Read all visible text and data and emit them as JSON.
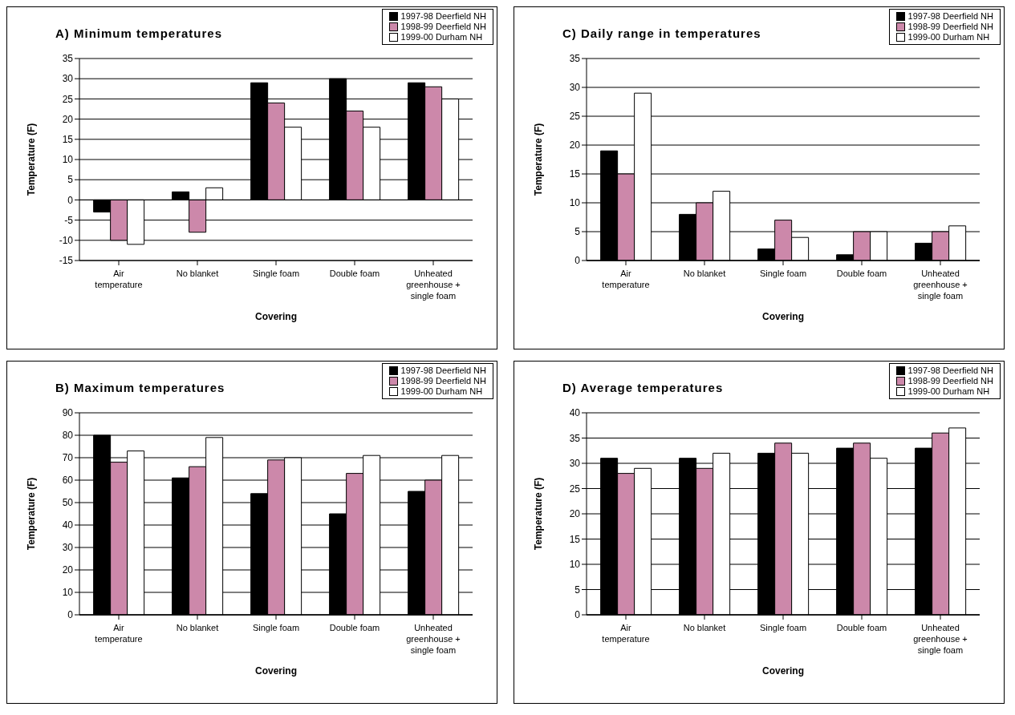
{
  "chart_data": [
    {
      "type": "bar",
      "title": "A) Minimum temperatures",
      "xlabel": "Covering",
      "ylabel": "Temperature (F)",
      "categories": [
        "Air temperature",
        "No blanket",
        "Single foam",
        "Double foam",
        "Unheated greenhouse + single foam"
      ],
      "series": [
        {
          "name": "1997-98 Deerfield NH",
          "color": "#000000",
          "values": [
            -3,
            2,
            29,
            30,
            29
          ]
        },
        {
          "name": "1998-99 Deerfield NH",
          "color": "#cc88aa",
          "values": [
            -10,
            -8,
            24,
            22,
            28
          ]
        },
        {
          "name": "1999-00 Durham NH",
          "color": "#ffffff",
          "values": [
            -11,
            3,
            18,
            18,
            25
          ]
        }
      ],
      "ylim": [
        -15,
        35
      ],
      "yticks": [
        -15,
        -10,
        -5,
        0,
        5,
        10,
        15,
        20,
        25,
        30,
        35
      ],
      "grid": "y",
      "legend": "top right"
    },
    {
      "type": "bar",
      "title": "C) Daily range in temperatures",
      "xlabel": "Covering",
      "ylabel": "Temperature (F)",
      "categories": [
        "Air temperature",
        "No blanket",
        "Single foam",
        "Double foam",
        "Unheated greenhouse + single foam"
      ],
      "series": [
        {
          "name": "1997-98 Deerfield NH",
          "color": "#000000",
          "values": [
            19,
            8,
            2,
            1,
            3
          ]
        },
        {
          "name": "1998-99 Deerfield NH",
          "color": "#cc88aa",
          "values": [
            15,
            10,
            7,
            5,
            5
          ]
        },
        {
          "name": "1999-00 Durham NH",
          "color": "#ffffff",
          "values": [
            29,
            12,
            4,
            5,
            6
          ]
        }
      ],
      "ylim": [
        0,
        35
      ],
      "yticks": [
        0,
        5,
        10,
        15,
        20,
        25,
        30,
        35
      ],
      "grid": "y",
      "legend": "top right"
    },
    {
      "type": "bar",
      "title": "B) Maximum temperatures",
      "xlabel": "Covering",
      "ylabel": "Temperature (F)",
      "categories": [
        "Air temperature",
        "No blanket",
        "Single foam",
        "Double foam",
        "Unheated greenhouse + single foam"
      ],
      "series": [
        {
          "name": "1997-98 Deerfield NH",
          "color": "#000000",
          "values": [
            80,
            61,
            54,
            45,
            55
          ]
        },
        {
          "name": "1998-99 Deerfield NH",
          "color": "#cc88aa",
          "values": [
            68,
            66,
            69,
            63,
            60
          ]
        },
        {
          "name": "1999-00 Durham NH",
          "color": "#ffffff",
          "values": [
            73,
            79,
            70,
            71,
            71
          ]
        }
      ],
      "ylim": [
        0,
        90
      ],
      "yticks": [
        0,
        10,
        20,
        30,
        40,
        50,
        60,
        70,
        80,
        90
      ],
      "grid": "y",
      "legend": "top right"
    },
    {
      "type": "bar",
      "title": "D) Average temperatures",
      "xlabel": "Covering",
      "ylabel": "Temperature (F)",
      "categories": [
        "Air temperature",
        "No blanket",
        "Single foam",
        "Double foam",
        "Unheated greenhouse + single foam"
      ],
      "series": [
        {
          "name": "1997-98 Deerfield NH",
          "color": "#000000",
          "values": [
            31,
            31,
            32,
            33,
            33
          ]
        },
        {
          "name": "1998-99 Deerfield NH",
          "color": "#cc88aa",
          "values": [
            28,
            29,
            34,
            34,
            36
          ]
        },
        {
          "name": "1999-00 Durham NH",
          "color": "#ffffff",
          "values": [
            29,
            32,
            32,
            31,
            37
          ]
        }
      ],
      "ylim": [
        0,
        40
      ],
      "yticks": [
        0,
        5,
        10,
        15,
        20,
        25,
        30,
        35,
        40
      ],
      "grid": "y",
      "legend": "top right"
    }
  ]
}
